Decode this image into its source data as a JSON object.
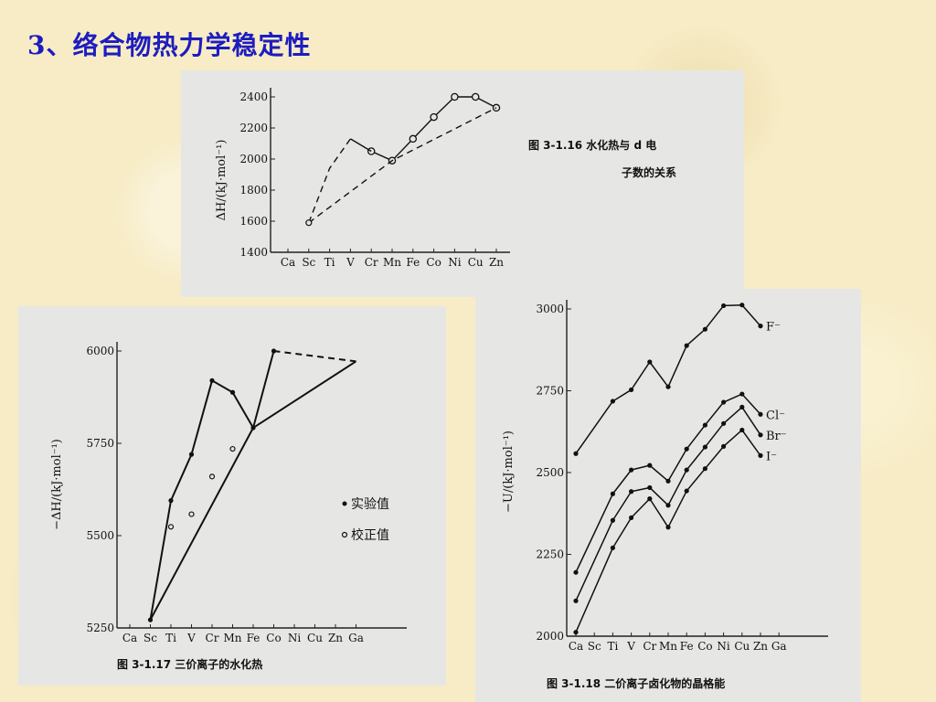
{
  "page": {
    "title": "3、络合物热力学稳定性"
  },
  "chart_data": [
    {
      "id": "fig-3-1-16",
      "type": "line",
      "caption_line1": "图 3-1.16  水化热与 d 电",
      "caption_line2": "子数的关系",
      "ylabel": "ΔH/(kJ·mol⁻¹)",
      "ylim": [
        1400,
        2400
      ],
      "yticks": [
        1400,
        1600,
        1800,
        2000,
        2200,
        2400
      ],
      "ytick_labels": [
        "1400",
        "1600",
        "1800",
        "2000",
        "2200",
        "2400"
      ],
      "categories": [
        "Ca",
        "Sc",
        "Ti",
        "V",
        "Cr",
        "Mn",
        "Fe",
        "Co",
        "Ni",
        "Cu",
        "Zn"
      ],
      "series": [
        {
          "kind": "solid-markers",
          "x": [
            "Cr",
            "Mn",
            "Fe",
            "Co",
            "Ni",
            "Cu",
            "Zn"
          ],
          "values": [
            2050,
            1990,
            2130,
            2270,
            2400,
            2400,
            2330
          ]
        },
        {
          "kind": "solid",
          "x": [
            "V",
            "Cr"
          ],
          "values": [
            2130,
            2050
          ]
        },
        {
          "kind": "dashed",
          "x": [
            "Sc",
            "Ti",
            "V"
          ],
          "values": [
            1590,
            1940,
            2130
          ]
        },
        {
          "kind": "dashed",
          "x": [
            "Sc",
            "Mn",
            "Zn"
          ],
          "values": [
            1590,
            1990,
            2330
          ]
        }
      ]
    },
    {
      "id": "fig-3-1-17",
      "type": "line",
      "caption": "图 3-1.17  三价离子的水化热",
      "ylabel": "−ΔH/(kJ·mol⁻¹)",
      "ylim": [
        5250,
        6000
      ],
      "yticks": [
        5250,
        5500,
        5750,
        6000
      ],
      "ytick_labels": [
        "5250",
        "5500",
        "5750",
        "6000"
      ],
      "categories": [
        "Ca",
        "Sc",
        "Ti",
        "V",
        "Cr",
        "Mn",
        "Fe",
        "Co",
        "Ni",
        "Cu",
        "Zn",
        "Ga"
      ],
      "series": [
        {
          "name": "实验值",
          "kind": "filled",
          "x": [
            "Sc",
            "Ti",
            "V",
            "Cr",
            "Mn",
            "Fe",
            "Co"
          ],
          "values": [
            5272,
            5595,
            5720,
            5920,
            5888,
            5792,
            6000
          ]
        },
        {
          "name": "校正值",
          "kind": "open",
          "x": [
            "Ti",
            "V",
            "Cr",
            "Mn"
          ],
          "values": [
            5524,
            5558,
            5660,
            5735
          ]
        },
        {
          "kind": "solid-line",
          "x": [
            "Sc",
            "Fe",
            "Ga"
          ],
          "values": [
            5272,
            5792,
            5972
          ]
        },
        {
          "kind": "dashed",
          "x": [
            "Co",
            "Ga"
          ],
          "values": [
            6000,
            5972
          ]
        }
      ],
      "legend": [
        "实验值",
        "校正值"
      ]
    },
    {
      "id": "fig-3-1-18",
      "type": "line",
      "caption": "图 3-1.18  二价离子卤化物的晶格能",
      "ylabel": "−U/(kJ·mol⁻¹)",
      "ylim": [
        2000,
        3000
      ],
      "yticks": [
        2000,
        2250,
        2500,
        2750,
        3000
      ],
      "ytick_labels": [
        "2000",
        "2250",
        "2500",
        "2750",
        "3000"
      ],
      "categories": [
        "Ca",
        "Sc",
        "Ti",
        "V",
        "Cr",
        "Mn",
        "Fe",
        "Co",
        "Ni",
        "Cu",
        "Zn",
        "Ga"
      ],
      "series": [
        {
          "name": "F⁻",
          "x": [
            "Ca",
            "Ti",
            "V",
            "Cr",
            "Mn",
            "Fe",
            "Co",
            "Ni",
            "Cu",
            "Zn"
          ],
          "values": [
            2558,
            2718,
            2753,
            2838,
            2762,
            2888,
            2938,
            3010,
            3012,
            2948
          ]
        },
        {
          "name": "Cl⁻",
          "x": [
            "Ca",
            "Ti",
            "V",
            "Cr",
            "Mn",
            "Fe",
            "Co",
            "Ni",
            "Cu",
            "Zn"
          ],
          "values": [
            2195,
            2435,
            2508,
            2522,
            2474,
            2572,
            2645,
            2715,
            2740,
            2678
          ]
        },
        {
          "name": "Br⁻",
          "x": [
            "Ca",
            "Ti",
            "V",
            "Cr",
            "Mn",
            "Fe",
            "Co",
            "Ni",
            "Cu",
            "Zn"
          ],
          "values": [
            2108,
            2354,
            2442,
            2454,
            2400,
            2508,
            2578,
            2650,
            2700,
            2615
          ]
        },
        {
          "name": "I⁻",
          "x": [
            "Ca",
            "Ti",
            "V",
            "Cr",
            "Mn",
            "Fe",
            "Co",
            "Ni",
            "Cu",
            "Zn"
          ],
          "values": [
            2012,
            2270,
            2362,
            2420,
            2333,
            2444,
            2512,
            2580,
            2630,
            2552
          ]
        }
      ]
    }
  ]
}
